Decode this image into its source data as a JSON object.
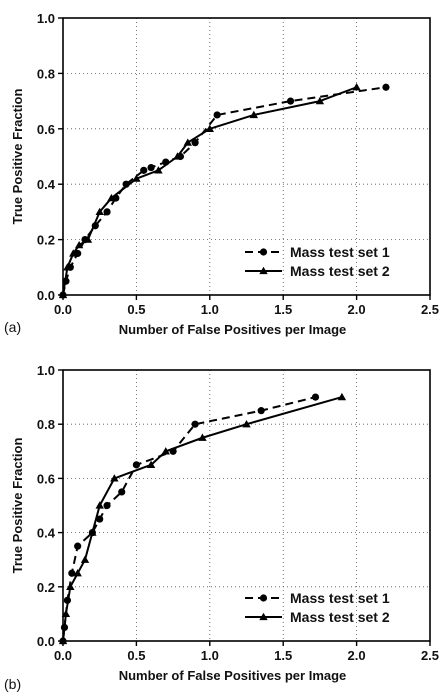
{
  "chart_data": [
    {
      "type": "line",
      "panel_label": "(a)",
      "xlabel": "Number of False Positives per Image",
      "ylabel": "True Positive Fraction",
      "xlim": [
        0,
        2.5
      ],
      "ylim": [
        0,
        1.0
      ],
      "xticks": [
        "0.0",
        "0.5",
        "1.0",
        "1.5",
        "2.0",
        "2.5"
      ],
      "yticks": [
        "0.0",
        "0.2",
        "0.4",
        "0.6",
        "0.8",
        "1.0"
      ],
      "grid": true,
      "legend_position": "bottom-right",
      "series": [
        {
          "name": "Mass test set 1",
          "style": "dashed",
          "marker": "circle",
          "x": [
            0.0,
            0.02,
            0.05,
            0.1,
            0.15,
            0.22,
            0.3,
            0.36,
            0.43,
            0.55,
            0.6,
            0.7,
            0.8,
            0.9,
            1.05,
            1.55,
            2.2
          ],
          "y": [
            0.0,
            0.05,
            0.1,
            0.15,
            0.2,
            0.25,
            0.3,
            0.35,
            0.4,
            0.45,
            0.46,
            0.48,
            0.5,
            0.55,
            0.65,
            0.7,
            0.75
          ]
        },
        {
          "name": "Mass test set 2",
          "style": "solid",
          "marker": "triangle",
          "x": [
            0.0,
            0.03,
            0.07,
            0.11,
            0.17,
            0.25,
            0.33,
            0.5,
            0.65,
            0.78,
            0.85,
            1.0,
            1.3,
            1.75,
            2.0
          ],
          "y": [
            0.0,
            0.1,
            0.15,
            0.18,
            0.2,
            0.3,
            0.35,
            0.42,
            0.45,
            0.5,
            0.55,
            0.6,
            0.65,
            0.7,
            0.75
          ]
        }
      ]
    },
    {
      "type": "line",
      "panel_label": "(b)",
      "xlabel": "Number of False Positives per Image",
      "ylabel": "True Positive Fraction",
      "xlim": [
        0,
        2.5
      ],
      "ylim": [
        0,
        1.0
      ],
      "xticks": [
        "0.0",
        "0.5",
        "1.0",
        "1.5",
        "2.0",
        "2.5"
      ],
      "yticks": [
        "0.0",
        "0.2",
        "0.4",
        "0.6",
        "0.8",
        "1.0"
      ],
      "grid": true,
      "legend_position": "bottom-right",
      "series": [
        {
          "name": "Mass test set 1",
          "style": "dashed",
          "marker": "circle",
          "x": [
            0.0,
            0.01,
            0.03,
            0.06,
            0.1,
            0.2,
            0.25,
            0.3,
            0.4,
            0.5,
            0.75,
            0.9,
            1.35,
            1.72
          ],
          "y": [
            0.0,
            0.05,
            0.15,
            0.25,
            0.35,
            0.4,
            0.45,
            0.5,
            0.55,
            0.65,
            0.7,
            0.8,
            0.85,
            0.9
          ]
        },
        {
          "name": "Mass test set 2",
          "style": "solid",
          "marker": "triangle",
          "x": [
            0.0,
            0.02,
            0.05,
            0.1,
            0.15,
            0.2,
            0.25,
            0.35,
            0.6,
            0.7,
            0.95,
            1.25,
            1.9
          ],
          "y": [
            0.0,
            0.1,
            0.2,
            0.25,
            0.3,
            0.4,
            0.5,
            0.6,
            0.65,
            0.7,
            0.75,
            0.8,
            0.9
          ]
        }
      ]
    }
  ]
}
